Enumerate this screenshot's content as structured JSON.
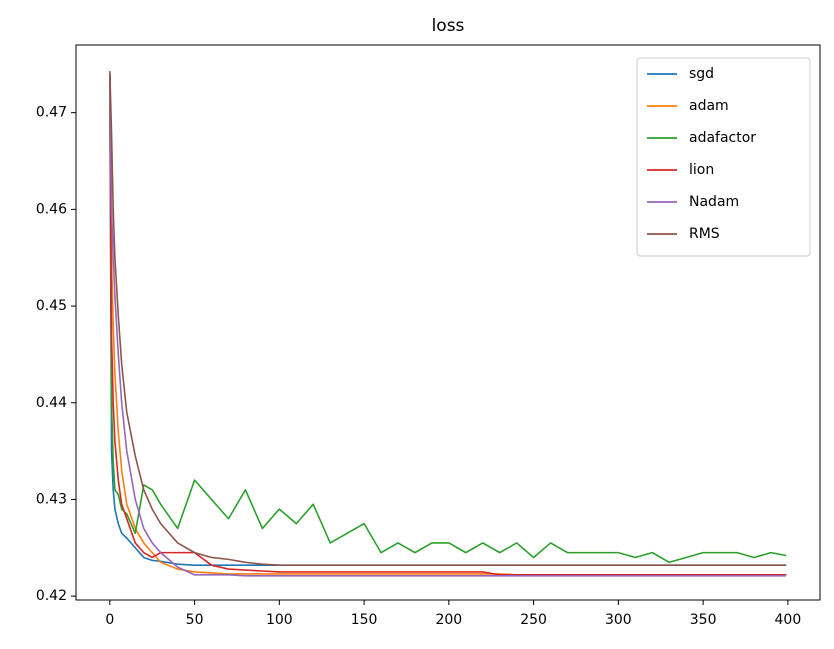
{
  "chart_data": {
    "type": "line",
    "title": "loss",
    "x": [
      0,
      1,
      2,
      3,
      5,
      7,
      10,
      15,
      20,
      25,
      30,
      40,
      50,
      60,
      70,
      80,
      90,
      100,
      110,
      120,
      130,
      140,
      150,
      160,
      170,
      180,
      190,
      200,
      210,
      220,
      230,
      240,
      250,
      260,
      270,
      280,
      290,
      300,
      310,
      320,
      330,
      340,
      350,
      360,
      370,
      380,
      390,
      399
    ],
    "series": [
      {
        "name": "sgd",
        "color": "#1f77b4",
        "values": [
          0.474,
          0.435,
          0.431,
          0.429,
          0.4275,
          0.4265,
          0.426,
          0.425,
          0.424,
          0.4237,
          0.4236,
          0.4233,
          0.4232,
          0.4232,
          0.4232,
          0.4232,
          0.4232,
          0.4232,
          0.4232,
          0.4232,
          0.4232,
          0.4232,
          0.4232,
          0.4232,
          0.4232,
          0.4232,
          0.4232,
          0.4232,
          0.4232,
          0.4232,
          0.4232,
          0.4232,
          0.4232,
          0.4232,
          0.4232,
          0.4232,
          0.4232,
          0.4232,
          0.4232,
          0.4232,
          0.4232,
          0.4232,
          0.4232,
          0.4232,
          0.4232,
          0.4232,
          0.4232,
          0.4232
        ]
      },
      {
        "name": "adam",
        "color": "#ff7f0e",
        "values": [
          0.474,
          0.455,
          0.448,
          0.443,
          0.437,
          0.433,
          0.4295,
          0.427,
          0.4255,
          0.4245,
          0.4235,
          0.4228,
          0.4225,
          0.4224,
          0.4223,
          0.4223,
          0.4223,
          0.4223,
          0.4223,
          0.4223,
          0.4223,
          0.4223,
          0.4223,
          0.4223,
          0.4223,
          0.4223,
          0.4223,
          0.4223,
          0.4223,
          0.4223,
          0.4223,
          0.4222,
          0.4222,
          0.4222,
          0.4222,
          0.4222,
          0.4222,
          0.4222,
          0.4222,
          0.4222,
          0.4222,
          0.4222,
          0.4222,
          0.4222,
          0.4222,
          0.4222,
          0.4222,
          0.4222
        ]
      },
      {
        "name": "adafactor",
        "color": "#2ca02c",
        "values": [
          0.474,
          0.44,
          0.434,
          0.431,
          0.4305,
          0.429,
          0.4285,
          0.4265,
          0.4315,
          0.431,
          0.4295,
          0.427,
          0.432,
          0.43,
          0.428,
          0.431,
          0.427,
          0.429,
          0.4275,
          0.4295,
          0.4255,
          0.4265,
          0.4275,
          0.4245,
          0.4255,
          0.4245,
          0.4255,
          0.4255,
          0.4245,
          0.4255,
          0.4245,
          0.4255,
          0.424,
          0.4255,
          0.4245,
          0.4245,
          0.4245,
          0.4245,
          0.424,
          0.4245,
          0.4235,
          0.424,
          0.4245,
          0.4245,
          0.4245,
          0.424,
          0.4245,
          0.4242
        ]
      },
      {
        "name": "lion",
        "color": "#d62728",
        "values": [
          0.474,
          0.447,
          0.44,
          0.436,
          0.432,
          0.4295,
          0.428,
          0.4255,
          0.4245,
          0.424,
          0.4245,
          0.4245,
          0.4245,
          0.4232,
          0.4228,
          0.4227,
          0.4226,
          0.4225,
          0.4225,
          0.4225,
          0.4225,
          0.4225,
          0.4225,
          0.4225,
          0.4225,
          0.4225,
          0.4225,
          0.4225,
          0.4225,
          0.4225,
          0.4222,
          0.4222,
          0.4222,
          0.4222,
          0.4222,
          0.4222,
          0.4222,
          0.4222,
          0.4222,
          0.4222,
          0.4222,
          0.4222,
          0.4222,
          0.4222,
          0.4222,
          0.4222,
          0.4222,
          0.4222
        ]
      },
      {
        "name": "Nadam",
        "color": "#9467bd",
        "values": [
          0.474,
          0.46,
          0.455,
          0.451,
          0.445,
          0.44,
          0.435,
          0.43,
          0.427,
          0.4255,
          0.4245,
          0.423,
          0.4222,
          0.4222,
          0.4222,
          0.4221,
          0.4221,
          0.4221,
          0.4221,
          0.4221,
          0.4221,
          0.4221,
          0.4221,
          0.4221,
          0.4221,
          0.4221,
          0.4221,
          0.4221,
          0.4221,
          0.4221,
          0.4221,
          0.4221,
          0.4221,
          0.4221,
          0.4221,
          0.4221,
          0.4221,
          0.4221,
          0.4221,
          0.4221,
          0.4221,
          0.4221,
          0.4221,
          0.4221,
          0.4221,
          0.4221,
          0.4221,
          0.4221
        ]
      },
      {
        "name": "RMS",
        "color": "#8c564b",
        "values": [
          0.4743,
          0.468,
          0.46,
          0.455,
          0.449,
          0.444,
          0.439,
          0.4345,
          0.431,
          0.429,
          0.4275,
          0.4255,
          0.4245,
          0.424,
          0.4238,
          0.4235,
          0.4233,
          0.4232,
          0.4232,
          0.4232,
          0.4232,
          0.4232,
          0.4232,
          0.4232,
          0.4232,
          0.4232,
          0.4232,
          0.4232,
          0.4232,
          0.4232,
          0.4232,
          0.4232,
          0.4232,
          0.4232,
          0.4232,
          0.4232,
          0.4232,
          0.4232,
          0.4232,
          0.4232,
          0.4232,
          0.4232,
          0.4232,
          0.4232,
          0.4232,
          0.4232,
          0.4232,
          0.4232
        ]
      }
    ],
    "xlim": [
      -19.95,
      418.95
    ],
    "xticks": [
      0,
      50,
      100,
      150,
      200,
      250,
      300,
      350,
      400
    ],
    "ylim": [
      0.4196,
      0.477
    ],
    "yticks": [
      0.42,
      0.43,
      0.44,
      0.45,
      0.46,
      0.47
    ],
    "legend": "upper right"
  }
}
